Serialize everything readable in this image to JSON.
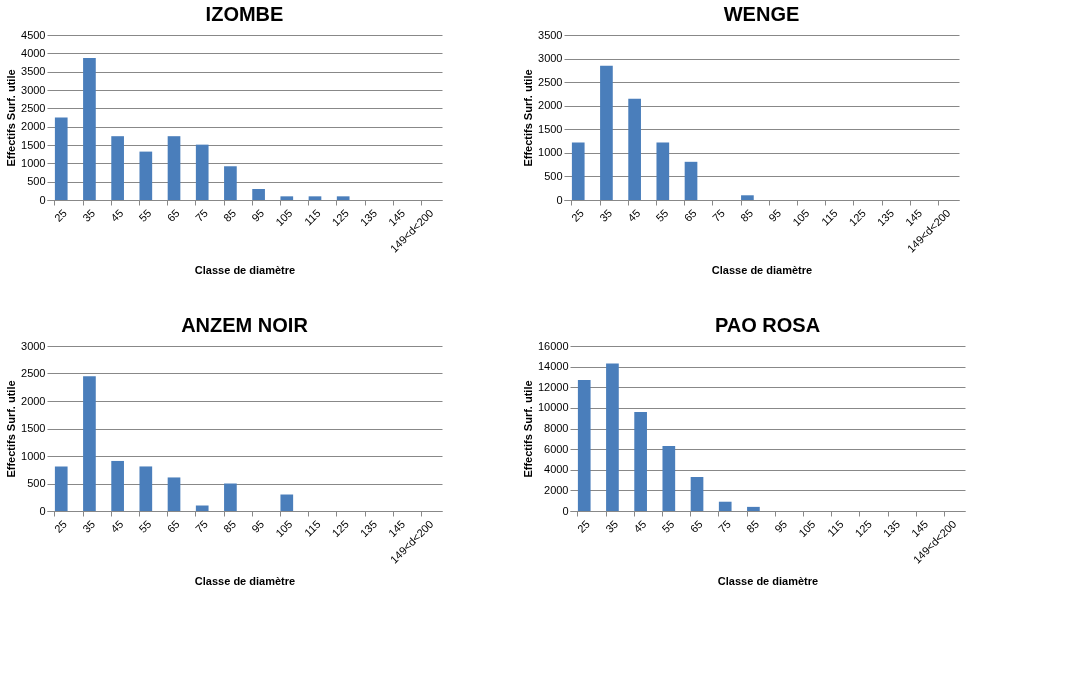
{
  "chart_data": [
    {
      "type": "bar",
      "title": "IZOMBE",
      "xlabel": "Classe de diamètre",
      "ylabel": "Effectifs Surf. utile",
      "categories": [
        "25",
        "35",
        "45",
        "55",
        "65",
        "75",
        "85",
        "95",
        "105",
        "115",
        "125",
        "135",
        "145",
        "149<d<200"
      ],
      "values": [
        2250,
        3870,
        1740,
        1320,
        1740,
        1510,
        920,
        300,
        100,
        100,
        100,
        0,
        0,
        0
      ],
      "color": "#4a7ebb",
      "ylim": [
        0,
        4500
      ],
      "yticks": [
        0,
        500,
        1000,
        1500,
        2000,
        2500,
        3000,
        3500,
        4000,
        4500
      ],
      "grid": "y"
    },
    {
      "type": "bar",
      "title": "WENGE",
      "xlabel": "Classe de diamètre",
      "ylabel": "Effectifs Surf. utile",
      "categories": [
        "25",
        "35",
        "45",
        "55",
        "65",
        "75",
        "85",
        "95",
        "105",
        "115",
        "125",
        "135",
        "145",
        "149<d<200"
      ],
      "values": [
        1220,
        2850,
        2150,
        1220,
        810,
        0,
        100,
        0,
        0,
        0,
        0,
        0,
        0,
        0
      ],
      "color": "#4a7ebb",
      "ylim": [
        0,
        3500
      ],
      "yticks": [
        0,
        500,
        1000,
        1500,
        2000,
        2500,
        3000,
        3500
      ],
      "grid": "y"
    },
    {
      "type": "bar",
      "title": "ANZEM NOIR",
      "xlabel": "Classe de diamètre",
      "ylabel": "Effectifs Surf. utile",
      "categories": [
        "25",
        "35",
        "45",
        "55",
        "65",
        "75",
        "85",
        "95",
        "105",
        "115",
        "125",
        "135",
        "145",
        "149<d<200"
      ],
      "values": [
        810,
        2450,
        910,
        810,
        610,
        100,
        500,
        0,
        300,
        0,
        0,
        0,
        0,
        0
      ],
      "color": "#4a7ebb",
      "ylim": [
        0,
        3000
      ],
      "yticks": [
        0,
        500,
        1000,
        1500,
        2000,
        2500,
        3000
      ],
      "grid": "y"
    },
    {
      "type": "bar",
      "title": "PAO ROSA",
      "xlabel": "Classe de diamètre",
      "ylabel": "Effectifs Surf. utile",
      "categories": [
        "25",
        "35",
        "45",
        "55",
        "65",
        "75",
        "85",
        "95",
        "105",
        "115",
        "125",
        "135",
        "145",
        "149<d<200"
      ],
      "values": [
        12700,
        14300,
        9600,
        6300,
        3300,
        900,
        400,
        0,
        0,
        0,
        0,
        0,
        0,
        0
      ],
      "color": "#4a7ebb",
      "ylim": [
        0,
        16000
      ],
      "yticks": [
        0,
        2000,
        4000,
        6000,
        8000,
        10000,
        12000,
        14000,
        16000
      ],
      "grid": "y"
    }
  ]
}
